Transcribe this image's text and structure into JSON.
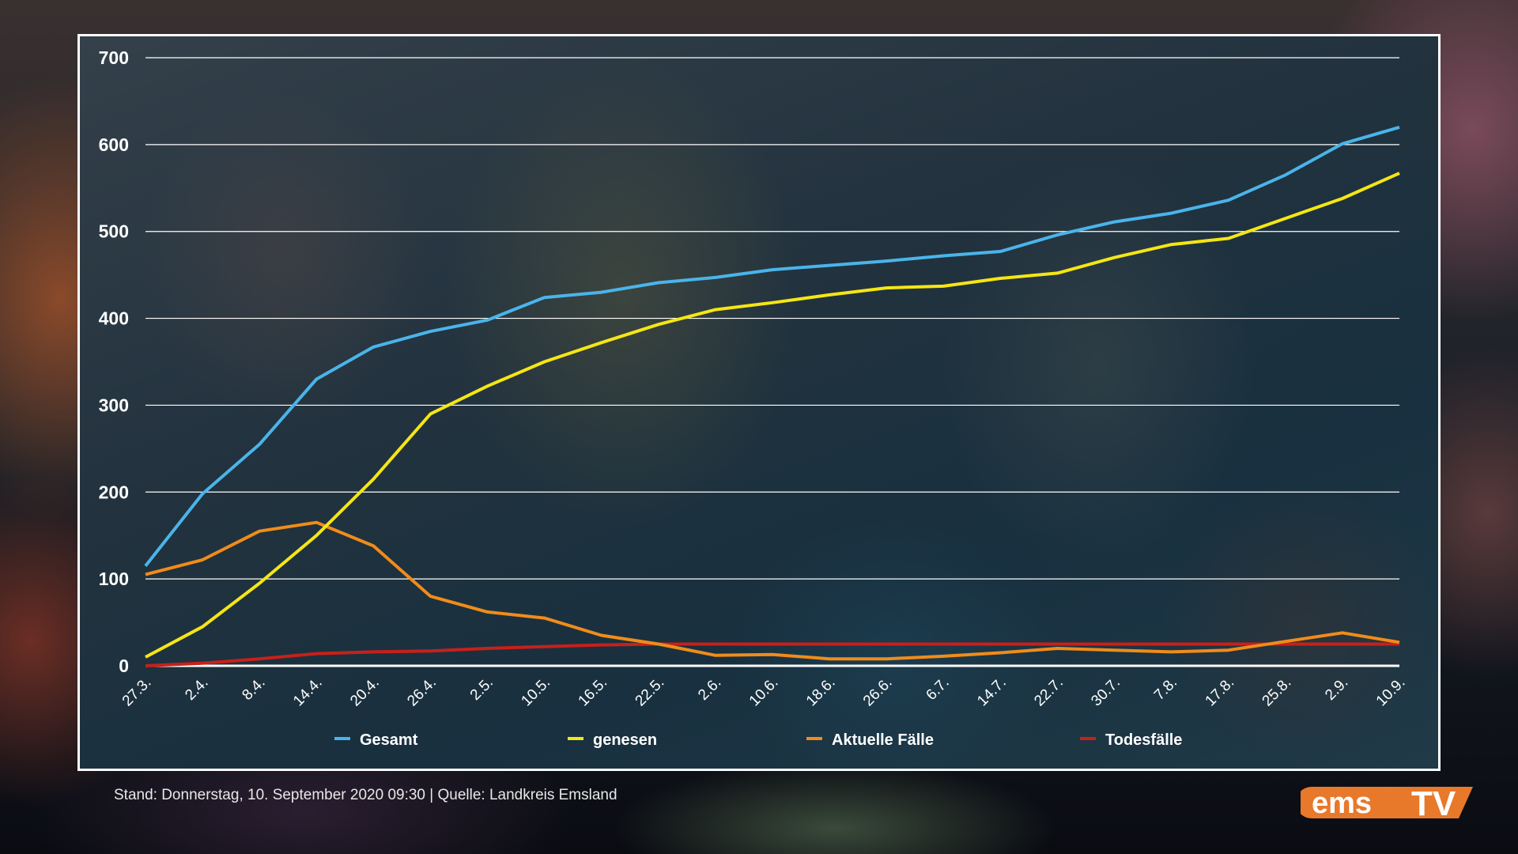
{
  "chart_data": {
    "type": "line",
    "categories": [
      "27.3.",
      "2.4.",
      "8.4.",
      "14.4.",
      "20.4.",
      "26.4.",
      "2.5.",
      "10.5.",
      "16.5.",
      "22.5.",
      "2.6.",
      "10.6.",
      "18.6.",
      "26.6.",
      "6.7.",
      "14.7.",
      "22.7.",
      "30.7.",
      "7.8.",
      "17.8.",
      "25.8.",
      "2.9.",
      "10.9."
    ],
    "ylim": [
      0,
      700
    ],
    "yticks": [
      "0",
      "100",
      "200",
      "300",
      "400",
      "500",
      "600",
      "700"
    ],
    "grid": true,
    "legend_position": "bottom",
    "series": [
      {
        "name": "Gesamt",
        "color": "#4ab4ea",
        "values": [
          115,
          198,
          255,
          330,
          367,
          385,
          398,
          424,
          430,
          441,
          447,
          456,
          461,
          466,
          472,
          477,
          496,
          511,
          521,
          536,
          565,
          601,
          620
        ]
      },
      {
        "name": "genesen",
        "color": "#f5e614",
        "values": [
          10,
          45,
          95,
          150,
          215,
          290,
          322,
          350,
          372,
          393,
          410,
          418,
          427,
          435,
          437,
          446,
          452,
          470,
          485,
          492,
          515,
          538,
          567
        ]
      },
      {
        "name": "Aktuelle Fälle",
        "color": "#f08c1a",
        "values": [
          105,
          122,
          155,
          165,
          138,
          80,
          62,
          55,
          35,
          25,
          12,
          13,
          8,
          8,
          11,
          15,
          20,
          18,
          16,
          18,
          28,
          38,
          27
        ]
      },
      {
        "name": "Todesfälle",
        "color": "#c8201a",
        "values": [
          0,
          3,
          8,
          14,
          16,
          17,
          20,
          22,
          24,
          25,
          25,
          25,
          25,
          25,
          25,
          25,
          25,
          25,
          25,
          25,
          25,
          25,
          25
        ]
      }
    ]
  },
  "footer": {
    "text": "Stand:  Donnerstag, 10. September 2020 09:30  |  Quelle:  Landkreis Emsland"
  },
  "logo": {
    "text": "ems TV",
    "color": "#e8782a"
  }
}
